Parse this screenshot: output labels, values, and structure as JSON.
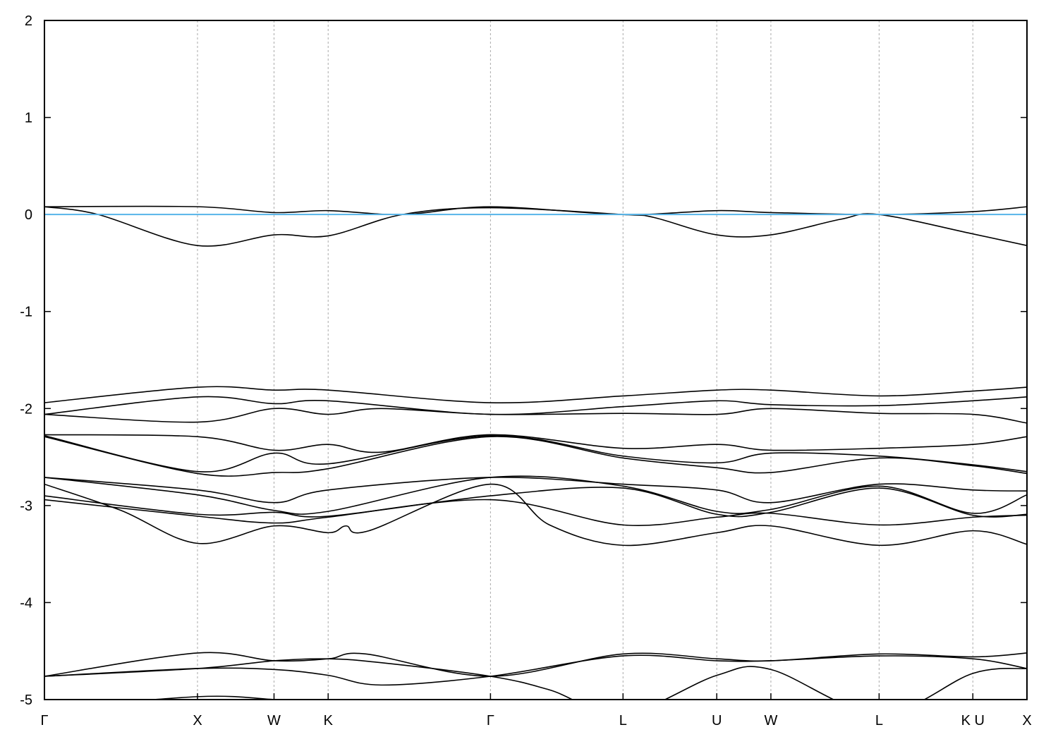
{
  "chart_data": {
    "type": "line",
    "title": "",
    "xlabel": "",
    "ylabel": "",
    "ylim": [
      -5,
      2
    ],
    "yticks": [
      -5,
      -4,
      -3,
      -2,
      -1,
      0,
      1,
      2
    ],
    "xlim": [
      0,
      6.4193
    ],
    "xticks": [
      {
        "label": "Γ",
        "x": 0
      },
      {
        "label": "X",
        "x": 1.0
      },
      {
        "label": "W",
        "x": 1.5
      },
      {
        "label": "K",
        "x": 1.8536
      },
      {
        "label": "Γ",
        "x": 2.9142
      },
      {
        "label": "L",
        "x": 3.7802
      },
      {
        "label": "U",
        "x": 4.3926
      },
      {
        "label": "W",
        "x": 4.7462
      },
      {
        "label": "L",
        "x": 5.4533
      },
      {
        "label": "K U",
        "x": 6.0657
      },
      {
        "label": "X",
        "x": 6.4193
      }
    ],
    "grid": "vertical dotted at high-symmetry points",
    "fermi_level": 0,
    "colors": {
      "bands": "#000000",
      "fermi": "#56b4e9",
      "grid": "#aaaaaa"
    },
    "series": [
      {
        "points": [
          [
            0,
            0.08
          ],
          [
            1,
            0.08
          ],
          [
            1.5,
            0.02
          ],
          [
            1.854,
            0.04
          ],
          [
            2.34,
            0.0
          ],
          [
            2.914,
            0.08
          ],
          [
            3.78,
            0.0
          ],
          [
            4.393,
            0.04
          ],
          [
            4.746,
            0.02
          ],
          [
            5.453,
            0.0
          ],
          [
            6.066,
            0.03
          ],
          [
            6.419,
            0.08
          ]
        ]
      },
      {
        "points": [
          [
            0,
            0.08
          ],
          [
            0.35,
            0.0
          ],
          [
            1,
            -0.32
          ],
          [
            1.5,
            -0.21
          ],
          [
            1.854,
            -0.22
          ],
          [
            2.34,
            0.0
          ],
          [
            2.914,
            0.07
          ],
          [
            3.78,
            0.0
          ],
          [
            3.98,
            -0.03
          ],
          [
            4.393,
            -0.21
          ],
          [
            4.746,
            -0.21
          ],
          [
            5.2,
            -0.05
          ],
          [
            5.453,
            0.0
          ],
          [
            6.066,
            -0.2
          ],
          [
            6.419,
            -0.32
          ]
        ]
      },
      {
        "points": [
          [
            0,
            -1.94
          ],
          [
            1,
            -1.78
          ],
          [
            1.5,
            -1.81
          ],
          [
            1.854,
            -1.81
          ],
          [
            2.914,
            -1.94
          ],
          [
            3.78,
            -1.87
          ],
          [
            4.393,
            -1.81
          ],
          [
            4.746,
            -1.81
          ],
          [
            5.453,
            -1.87
          ],
          [
            6.066,
            -1.82
          ],
          [
            6.419,
            -1.78
          ]
        ]
      },
      {
        "points": [
          [
            0,
            -2.06
          ],
          [
            1,
            -1.88
          ],
          [
            1.5,
            -1.95
          ],
          [
            1.854,
            -1.92
          ],
          [
            2.914,
            -2.06
          ],
          [
            3.78,
            -1.98
          ],
          [
            4.393,
            -1.92
          ],
          [
            4.746,
            -1.96
          ],
          [
            5.453,
            -1.97
          ],
          [
            6.066,
            -1.92
          ],
          [
            6.419,
            -1.88
          ]
        ]
      },
      {
        "points": [
          [
            0,
            -2.06
          ],
          [
            1,
            -2.14
          ],
          [
            1.5,
            -2.0
          ],
          [
            1.854,
            -2.06
          ],
          [
            2.2,
            -2.0
          ],
          [
            2.914,
            -2.06
          ],
          [
            3.78,
            -2.05
          ],
          [
            4.393,
            -2.06
          ],
          [
            4.746,
            -2.0
          ],
          [
            5.453,
            -2.05
          ],
          [
            6.066,
            -2.06
          ],
          [
            6.419,
            -2.15
          ]
        ]
      },
      {
        "points": [
          [
            0,
            -2.27
          ],
          [
            1,
            -2.29
          ],
          [
            1.5,
            -2.43
          ],
          [
            1.854,
            -2.37
          ],
          [
            2.2,
            -2.45
          ],
          [
            2.914,
            -2.27
          ],
          [
            3.78,
            -2.41
          ],
          [
            4.393,
            -2.37
          ],
          [
            4.746,
            -2.43
          ],
          [
            5.453,
            -2.41
          ],
          [
            6.066,
            -2.37
          ],
          [
            6.419,
            -2.29
          ]
        ]
      },
      {
        "points": [
          [
            0,
            -2.28
          ],
          [
            1,
            -2.65
          ],
          [
            1.5,
            -2.46
          ],
          [
            1.854,
            -2.57
          ],
          [
            2.914,
            -2.28
          ],
          [
            3.78,
            -2.49
          ],
          [
            4.393,
            -2.56
          ],
          [
            4.746,
            -2.46
          ],
          [
            5.453,
            -2.49
          ],
          [
            6.066,
            -2.58
          ],
          [
            6.419,
            -2.65
          ]
        ]
      },
      {
        "points": [
          [
            0,
            -2.29
          ],
          [
            1,
            -2.67
          ],
          [
            1.5,
            -2.66
          ],
          [
            1.854,
            -2.62
          ],
          [
            2.914,
            -2.29
          ],
          [
            3.78,
            -2.51
          ],
          [
            4.393,
            -2.61
          ],
          [
            4.746,
            -2.66
          ],
          [
            5.453,
            -2.51
          ],
          [
            6.066,
            -2.59
          ],
          [
            6.419,
            -2.67
          ]
        ]
      },
      {
        "points": [
          [
            0,
            -2.71
          ],
          [
            1,
            -2.84
          ],
          [
            1.5,
            -2.97
          ],
          [
            1.854,
            -2.84
          ],
          [
            2.914,
            -2.71
          ],
          [
            3.78,
            -2.78
          ],
          [
            4.393,
            -2.84
          ],
          [
            4.746,
            -2.97
          ],
          [
            5.453,
            -2.78
          ],
          [
            6.066,
            -2.84
          ],
          [
            6.419,
            -2.85
          ]
        ]
      },
      {
        "points": [
          [
            0,
            -2.71
          ],
          [
            1,
            -2.89
          ],
          [
            1.5,
            -3.05
          ],
          [
            1.854,
            -3.06
          ],
          [
            2.914,
            -2.71
          ],
          [
            3.78,
            -2.8
          ],
          [
            4.393,
            -3.06
          ],
          [
            4.746,
            -3.04
          ],
          [
            5.453,
            -2.8
          ],
          [
            6.066,
            -3.08
          ],
          [
            6.419,
            -2.89
          ]
        ]
      },
      {
        "points": [
          [
            0,
            -2.9
          ],
          [
            1,
            -3.09
          ],
          [
            1.5,
            -3.07
          ],
          [
            1.854,
            -3.11
          ],
          [
            2.914,
            -2.9
          ],
          [
            3.78,
            -2.82
          ],
          [
            4.393,
            -3.09
          ],
          [
            4.746,
            -3.07
          ],
          [
            5.453,
            -2.82
          ],
          [
            6.066,
            -3.1
          ],
          [
            6.419,
            -3.09
          ]
        ]
      },
      {
        "points": [
          [
            0,
            -2.94
          ],
          [
            1,
            -3.11
          ],
          [
            1.5,
            -3.18
          ],
          [
            1.854,
            -3.12
          ],
          [
            2.914,
            -2.94
          ],
          [
            3.78,
            -3.2
          ],
          [
            4.393,
            -3.12
          ],
          [
            4.746,
            -3.08
          ],
          [
            5.453,
            -3.2
          ],
          [
            6.066,
            -3.12
          ],
          [
            6.419,
            -3.1
          ]
        ]
      },
      {
        "points": [
          [
            0,
            -2.78
          ],
          [
            0.5,
            -3.05
          ],
          [
            1,
            -3.39
          ],
          [
            1.5,
            -3.21
          ],
          [
            1.854,
            -3.28
          ],
          [
            1.97,
            -3.21
          ],
          [
            2.12,
            -3.26
          ],
          [
            2.914,
            -2.78
          ],
          [
            3.3,
            -3.2
          ],
          [
            3.78,
            -3.41
          ],
          [
            4.393,
            -3.28
          ],
          [
            4.746,
            -3.21
          ],
          [
            5.453,
            -3.41
          ],
          [
            6.066,
            -3.26
          ],
          [
            6.419,
            -3.4
          ]
        ]
      },
      {
        "points": [
          [
            0,
            -4.76
          ],
          [
            1,
            -4.52
          ],
          [
            1.5,
            -4.6
          ],
          [
            1.854,
            -4.58
          ],
          [
            2.1,
            -4.53
          ],
          [
            2.914,
            -4.76
          ],
          [
            3.78,
            -4.53
          ],
          [
            4.393,
            -4.58
          ],
          [
            4.746,
            -4.6
          ],
          [
            5.453,
            -4.53
          ],
          [
            6.066,
            -4.56
          ],
          [
            6.419,
            -4.52
          ]
        ]
      },
      {
        "points": [
          [
            0,
            -4.76
          ],
          [
            1,
            -4.68
          ],
          [
            1.5,
            -4.69
          ],
          [
            1.854,
            -4.75
          ],
          [
            2.2,
            -4.85
          ],
          [
            2.914,
            -4.76
          ],
          [
            3.78,
            -4.55
          ],
          [
            4.393,
            -4.6
          ],
          [
            4.746,
            -4.6
          ],
          [
            5.453,
            -4.55
          ],
          [
            6.066,
            -4.58
          ],
          [
            6.419,
            -4.68
          ]
        ]
      },
      {
        "points": [
          [
            0,
            -4.76
          ],
          [
            1,
            -4.68
          ],
          [
            1.5,
            -4.6
          ],
          [
            1.854,
            -4.58
          ],
          [
            2.2,
            -4.62
          ],
          [
            2.914,
            -4.76
          ],
          [
            3.3,
            -4.9
          ],
          [
            3.78,
            -5.15
          ],
          [
            4.393,
            -4.75
          ],
          [
            4.746,
            -4.69
          ],
          [
            5.453,
            -5.15
          ],
          [
            6.066,
            -4.73
          ],
          [
            6.419,
            -4.68
          ]
        ]
      },
      {
        "points": [
          [
            0,
            -5.1
          ],
          [
            1,
            -4.97
          ],
          [
            1.5,
            -5.0
          ],
          [
            1.854,
            -5.05
          ],
          [
            2.914,
            -5.2
          ],
          [
            3.78,
            -5.3
          ],
          [
            4.393,
            -5.2
          ],
          [
            4.746,
            -5.2
          ],
          [
            5.453,
            -5.3
          ],
          [
            6.066,
            -5.2
          ],
          [
            6.419,
            -5.1
          ]
        ]
      }
    ]
  }
}
